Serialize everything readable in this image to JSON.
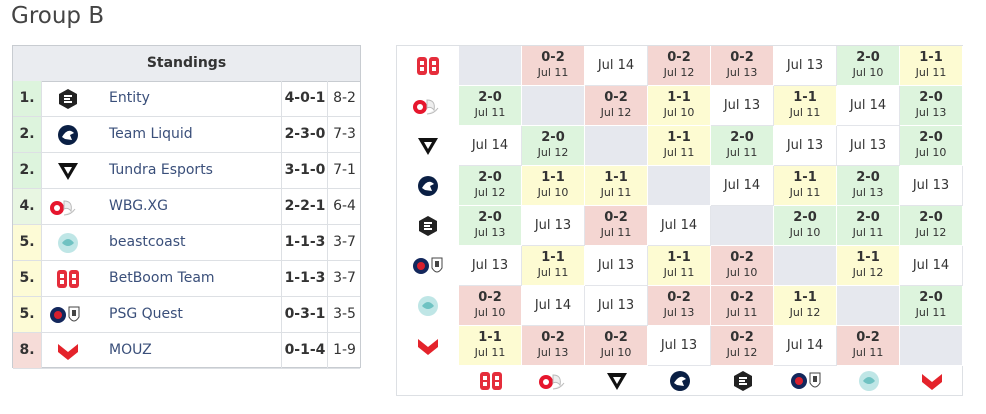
{
  "title": "Group B",
  "standings": {
    "header": "Standings",
    "rows": [
      {
        "rank": "1.",
        "team": "Entity",
        "record": "4-0-1",
        "maps": "8-2",
        "color": "#ddf4dd"
      },
      {
        "rank": "2.",
        "team": "Team Liquid",
        "record": "2-3-0",
        "maps": "7-3",
        "color": "#ddf4dd"
      },
      {
        "rank": "2.",
        "team": "Tundra Esports",
        "record": "3-1-0",
        "maps": "7-1",
        "color": "#ddf4dd"
      },
      {
        "rank": "4.",
        "team": "WBG.XG",
        "record": "2-2-1",
        "maps": "6-4",
        "color": "#e8f6e2"
      },
      {
        "rank": "5.",
        "team": "beastcoast",
        "record": "1-1-3",
        "maps": "3-7",
        "color": "#fdfbd6"
      },
      {
        "rank": "5.",
        "team": "BetBoom Team",
        "record": "1-1-3",
        "maps": "3-7",
        "color": "#fdfbd6"
      },
      {
        "rank": "5.",
        "team": "PSG Quest",
        "record": "0-3-1",
        "maps": "3-5",
        "color": "#fdfbd6"
      },
      {
        "rank": "8.",
        "team": "MOUZ",
        "record": "0-1-4",
        "maps": "1-9",
        "color": "#f6dcd8"
      }
    ]
  },
  "matrix": {
    "colors": {
      "win": "#ddf4dd",
      "loss": "#f4d6d2",
      "draw": "#fdfbd2",
      "none": "#ffffff",
      "self": "#e6e8ee"
    },
    "rows": [
      [
        null,
        {
          "score": "0-2",
          "date": "Jul 11"
        },
        {
          "date": "Jul 14"
        },
        {
          "score": "0-2",
          "date": "Jul 12"
        },
        {
          "score": "0-2",
          "date": "Jul 13"
        },
        {
          "date": "Jul 13"
        },
        {
          "score": "2-0",
          "date": "Jul 10"
        },
        {
          "score": "1-1",
          "date": "Jul 11"
        }
      ],
      [
        {
          "score": "2-0",
          "date": "Jul 11"
        },
        null,
        {
          "score": "0-2",
          "date": "Jul 12"
        },
        {
          "score": "1-1",
          "date": "Jul 10"
        },
        {
          "date": "Jul 13"
        },
        {
          "score": "1-1",
          "date": "Jul 11"
        },
        {
          "date": "Jul 14"
        },
        {
          "score": "2-0",
          "date": "Jul 13"
        }
      ],
      [
        {
          "date": "Jul 14"
        },
        {
          "score": "2-0",
          "date": "Jul 12"
        },
        null,
        {
          "score": "1-1",
          "date": "Jul 11"
        },
        {
          "score": "2-0",
          "date": "Jul 11"
        },
        {
          "date": "Jul 13"
        },
        {
          "date": "Jul 13"
        },
        {
          "score": "2-0",
          "date": "Jul 10"
        }
      ],
      [
        {
          "score": "2-0",
          "date": "Jul 12"
        },
        {
          "score": "1-1",
          "date": "Jul 10"
        },
        {
          "score": "1-1",
          "date": "Jul 11"
        },
        null,
        {
          "date": "Jul 14"
        },
        {
          "score": "1-1",
          "date": "Jul 11"
        },
        {
          "score": "2-0",
          "date": "Jul 13"
        },
        {
          "date": "Jul 13"
        }
      ],
      [
        {
          "score": "2-0",
          "date": "Jul 13"
        },
        {
          "date": "Jul 13"
        },
        {
          "score": "0-2",
          "date": "Jul 11"
        },
        {
          "date": "Jul 14"
        },
        null,
        {
          "score": "2-0",
          "date": "Jul 10"
        },
        {
          "score": "2-0",
          "date": "Jul 11"
        },
        {
          "score": "2-0",
          "date": "Jul 12"
        }
      ],
      [
        {
          "date": "Jul 13"
        },
        {
          "score": "1-1",
          "date": "Jul 11"
        },
        {
          "date": "Jul 13"
        },
        {
          "score": "1-1",
          "date": "Jul 11"
        },
        {
          "score": "0-2",
          "date": "Jul 10"
        },
        null,
        {
          "score": "1-1",
          "date": "Jul 12"
        },
        {
          "date": "Jul 14"
        }
      ],
      [
        {
          "score": "0-2",
          "date": "Jul 10"
        },
        {
          "date": "Jul 14"
        },
        {
          "date": "Jul 13"
        },
        {
          "score": "0-2",
          "date": "Jul 13"
        },
        {
          "score": "0-2",
          "date": "Jul 11"
        },
        {
          "score": "1-1",
          "date": "Jul 12"
        },
        null,
        {
          "score": "2-0",
          "date": "Jul 11"
        }
      ],
      [
        {
          "score": "1-1",
          "date": "Jul 11"
        },
        {
          "score": "0-2",
          "date": "Jul 13"
        },
        {
          "score": "0-2",
          "date": "Jul 10"
        },
        {
          "date": "Jul 13"
        },
        {
          "score": "0-2",
          "date": "Jul 12"
        },
        {
          "date": "Jul 14"
        },
        {
          "score": "0-2",
          "date": "Jul 11"
        },
        null
      ]
    ]
  }
}
